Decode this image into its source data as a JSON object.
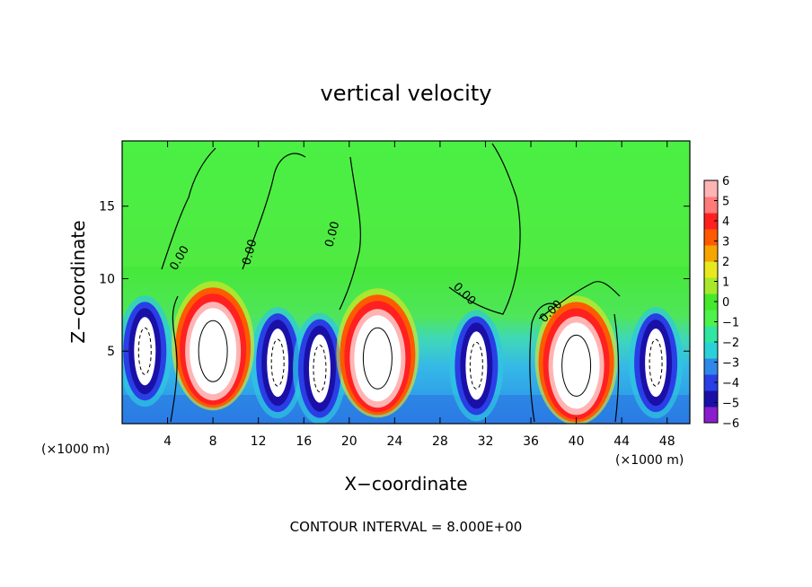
{
  "chart_data": {
    "type": "heatmap",
    "title": "vertical velocity",
    "xlabel": "X−coordinate",
    "ylabel": "Z−coordinate",
    "x_unit_left": "(×1000 m)",
    "x_unit_right": "(×1000 m)",
    "footer": "CONTOUR INTERVAL = 8.000E+00",
    "contour_label": "0.00",
    "xlim": [
      0,
      50
    ],
    "ylim": [
      0,
      19.5
    ],
    "x_ticks": [
      4,
      8,
      12,
      16,
      20,
      24,
      28,
      32,
      36,
      40,
      44,
      48
    ],
    "y_ticks": [
      5,
      10,
      15
    ],
    "colorbar": {
      "ticks": [
        "6",
        "5",
        "4",
        "3",
        "2",
        "1",
        "0",
        "−1",
        "−2",
        "−3",
        "−4",
        "−5",
        "−6"
      ],
      "range": [
        -6,
        6
      ],
      "colors": [
        "#8a1ecc",
        "#1a10a8",
        "#2a3ee6",
        "#2f87e8",
        "#2ad2d8",
        "#30e6a0",
        "#4ef24a",
        "#46e82c",
        "#a8e82a",
        "#e8e81e",
        "#f5a500",
        "#ff5a00",
        "#ff2020",
        "#ff7a7a",
        "#ffb4b4"
      ]
    },
    "updrafts": [
      {
        "x": 8.0,
        "z": 5.0,
        "wmax": 6
      },
      {
        "x": 22.5,
        "z": 4.5,
        "wmax": 6
      },
      {
        "x": 40.0,
        "z": 4.0,
        "wmax": 6
      }
    ],
    "downdrafts": [
      {
        "x": 2.0,
        "z": 5.0
      },
      {
        "x": 13.7,
        "z": 4.2
      },
      {
        "x": 17.4,
        "z": 3.8
      },
      {
        "x": 31.2,
        "z": 4.0
      },
      {
        "x": 47.0,
        "z": 4.2
      }
    ],
    "grid": false,
    "legend": "colorbar right"
  }
}
